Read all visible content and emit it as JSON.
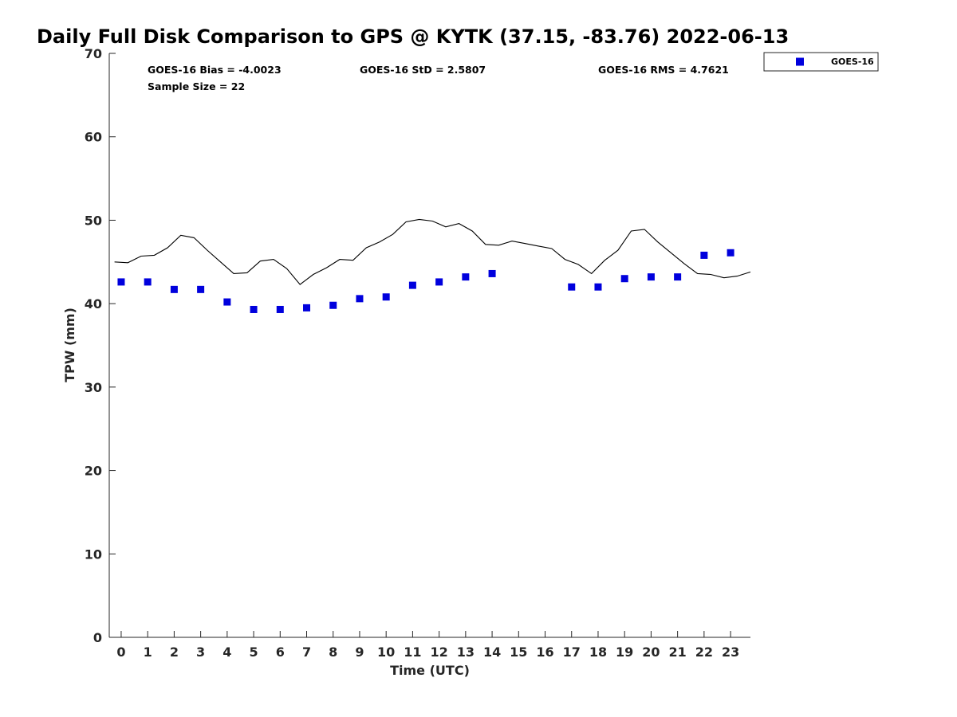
{
  "chart_data": {
    "type": "scatter",
    "title": "Daily Full Disk Comparison to GPS @ KYTK (37.15, -83.76) 2022-06-13",
    "xlabel": "Time (UTC)",
    "ylabel": "TPW (mm)",
    "xlim": [
      -0.45,
      23.75
    ],
    "ylim": [
      0,
      70
    ],
    "xticks": [
      "0",
      "1",
      "2",
      "3",
      "4",
      "5",
      "6",
      "7",
      "8",
      "9",
      "10",
      "11",
      "12",
      "13",
      "14",
      "15",
      "16",
      "17",
      "18",
      "19",
      "20",
      "21",
      "22",
      "23"
    ],
    "yticks": [
      "0",
      "10",
      "20",
      "30",
      "40",
      "50",
      "60",
      "70"
    ],
    "grid": false,
    "legend": {
      "placement": "outside-top-right",
      "entries": [
        "GOES-16"
      ]
    },
    "stats": {
      "bias": "GOES-16 Bias = -4.0023",
      "std": "GOES-16 StD = 2.5807",
      "rms": "GOES-16 RMS = 4.7621",
      "sample_size": "Sample Size = 22"
    },
    "series": [
      {
        "name": "GOES-16",
        "kind": "scatter",
        "marker": "square",
        "color": "#0000dd",
        "x": [
          0,
          1,
          2,
          3,
          4,
          5,
          6,
          7,
          8,
          9,
          10,
          11,
          12,
          13,
          14,
          17,
          18,
          19,
          20,
          21,
          22,
          23
        ],
        "y": [
          42.6,
          42.6,
          41.7,
          41.7,
          40.2,
          39.3,
          39.3,
          39.5,
          39.8,
          40.6,
          40.8,
          42.2,
          42.6,
          43.2,
          43.6,
          42.0,
          42.0,
          43.0,
          43.2,
          43.2,
          45.8,
          46.1
        ]
      },
      {
        "kind": "line",
        "color": "#000000",
        "x": [
          -0.25,
          0.25,
          0.75,
          1.25,
          1.75,
          2.25,
          2.75,
          3.25,
          3.75,
          4.25,
          4.75,
          5.25,
          5.75,
          6.25,
          6.75,
          7.25,
          7.75,
          8.25,
          8.75,
          9.25,
          9.75,
          10.25,
          10.75,
          11.25,
          11.75,
          12.25,
          12.75,
          13.25,
          13.75,
          14.25,
          14.75,
          15.25,
          15.75,
          16.25,
          16.75,
          17.25,
          17.75,
          18.25,
          18.75,
          19.25,
          19.75,
          20.25,
          20.75,
          21.25,
          21.75,
          22.25,
          22.75,
          23.25,
          23.75
        ],
        "y": [
          45.0,
          44.9,
          45.7,
          45.8,
          46.7,
          48.2,
          47.9,
          46.4,
          45.0,
          43.6,
          43.7,
          45.1,
          45.3,
          44.2,
          42.3,
          43.5,
          44.3,
          45.3,
          45.2,
          46.7,
          47.4,
          48.3,
          49.8,
          50.1,
          49.9,
          49.2,
          49.6,
          48.7,
          47.1,
          47.0,
          47.5,
          47.2,
          46.9,
          46.6,
          45.3,
          44.7,
          43.6,
          45.2,
          46.4,
          48.7,
          48.9,
          47.4,
          46.1,
          44.8,
          43.6,
          43.5,
          43.1,
          43.3,
          43.8
        ]
      }
    ]
  }
}
